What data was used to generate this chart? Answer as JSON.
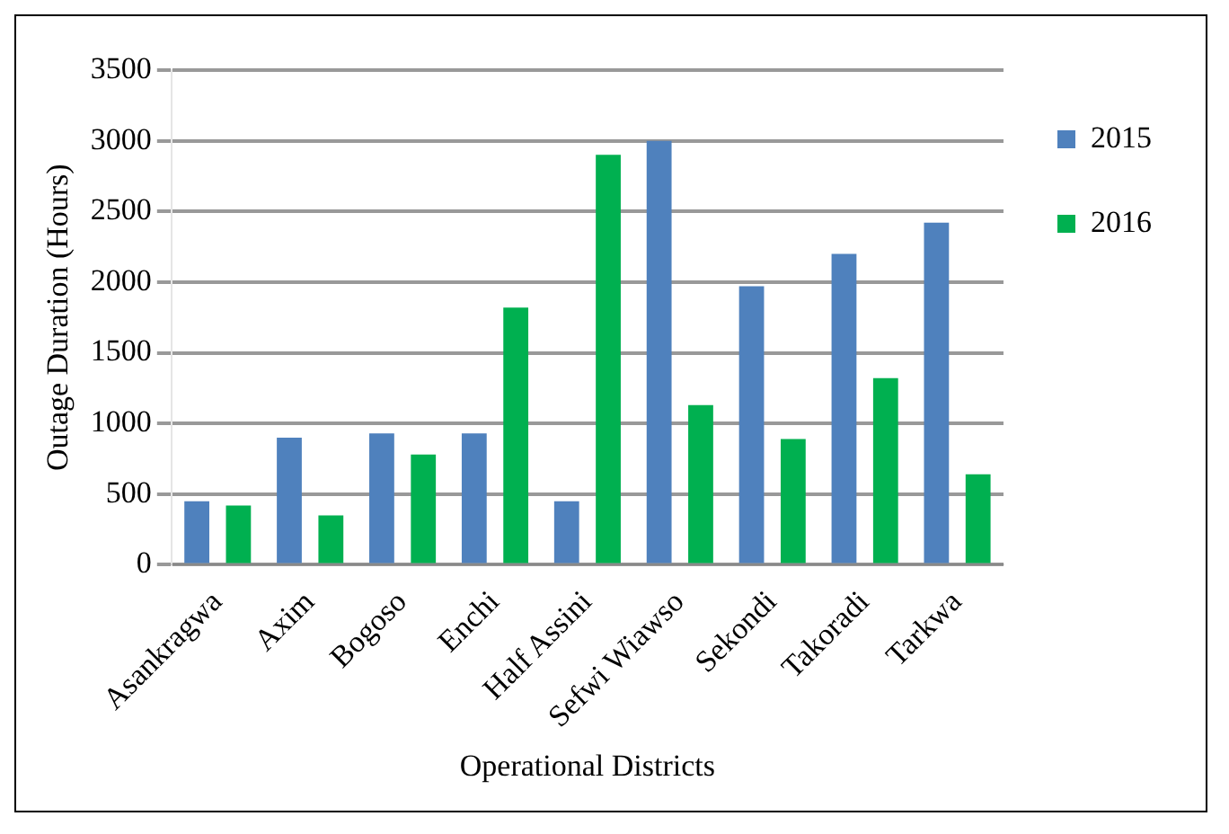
{
  "chart_data": {
    "type": "bar",
    "xlabel": "Operational Districts",
    "ylabel": "Outage Duration (Hours)",
    "categories": [
      "Asankragwa",
      "Axim",
      "Bogoso",
      "Enchi",
      "Half Assini",
      "Sefwi Wiawso",
      "Sekondi",
      "Takoradi",
      "Tarkwa"
    ],
    "series": [
      {
        "name": "2015",
        "color": "#4f81bd",
        "values": [
          450,
          900,
          930,
          930,
          450,
          3000,
          1970,
          2200,
          2420
        ]
      },
      {
        "name": "2016",
        "color": "#00b050",
        "values": [
          420,
          350,
          780,
          1820,
          2900,
          1130,
          890,
          1320,
          640
        ]
      }
    ],
    "ylim": [
      0,
      3500
    ],
    "yticks": [
      0,
      500,
      1000,
      1500,
      2000,
      2500,
      3000,
      3500
    ],
    "grid": "y",
    "legend": "right"
  }
}
